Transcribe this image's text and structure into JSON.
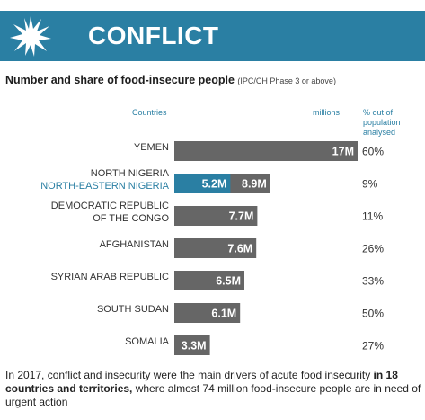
{
  "banner": {
    "title": "CONFLICT",
    "icon": "burst-icon",
    "color": "#2a7fa3"
  },
  "subtitle": {
    "main": "Number and share of food-insecure people",
    "note": "(IPC/CH Phase 3 or above)"
  },
  "columns": {
    "countries": "Countries",
    "millions": "millions",
    "pct": "% out of population analysed"
  },
  "footer": {
    "part1": "In 2017, conflict and insecurity were the main drivers of acute food insecurity ",
    "bold": "in 18 countries and territories,",
    "part2": " where almost 74 million food-insecure people are in need of urgent action"
  },
  "colors": {
    "bar": "#666666",
    "highlight": "#2a7fa3"
  },
  "chart_data": {
    "type": "bar",
    "orientation": "horizontal",
    "unit": "millions",
    "categories": [
      "YEMEN",
      "NORTH NIGERIA",
      "DEMOCRATIC REPUBLIC OF THE CONGO",
      "AFGHANISTAN",
      "SYRIAN ARAB REPUBLIC",
      "SOUTH SUDAN",
      "SOMALIA"
    ],
    "rows": [
      {
        "label_lines": [
          "YEMEN"
        ],
        "value": 17,
        "value_label": "17M",
        "pct": "60%"
      },
      {
        "label_lines": [
          "NORTH NIGERIA",
          "NORTH-EASTERN NIGERIA"
        ],
        "value": 8.9,
        "value_label": "8.9M",
        "sub_value": 5.2,
        "sub_value_label": "5.2M",
        "pct": "9%"
      },
      {
        "label_lines": [
          "DEMOCRATIC REPUBLIC",
          "OF THE CONGO"
        ],
        "value": 7.7,
        "value_label": "7.7M",
        "pct": "11%"
      },
      {
        "label_lines": [
          "AFGHANISTAN"
        ],
        "value": 7.6,
        "value_label": "7.6M",
        "pct": "26%"
      },
      {
        "label_lines": [
          "SYRIAN ARAB REPUBLIC"
        ],
        "value": 6.5,
        "value_label": "6.5M",
        "pct": "33%"
      },
      {
        "label_lines": [
          "SOUTH SUDAN"
        ],
        "value": 6.1,
        "value_label": "6.1M",
        "pct": "50%"
      },
      {
        "label_lines": [
          "SOMALIA"
        ],
        "value": 3.3,
        "value_label": "3.3M",
        "pct": "27%"
      }
    ],
    "xlim": [
      0,
      17
    ]
  }
}
